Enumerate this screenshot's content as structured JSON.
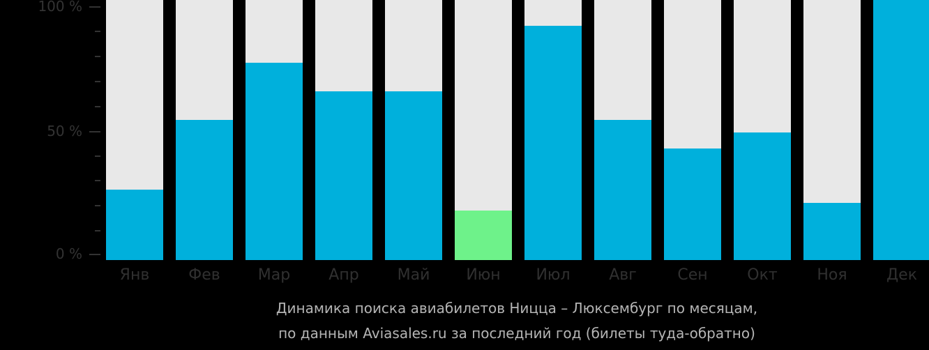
{
  "chart_data": {
    "type": "bar",
    "title": "Динамика поиска авиабилетов Ницца – Люксембург по месяцам,",
    "subtitle": "по данным Aviasales.ru за последний год (билеты туда-обратно)",
    "xlabel": "",
    "ylabel": "",
    "ylim": [
      0,
      100
    ],
    "yticks": [
      "100 %",
      "50 %",
      "0 %"
    ],
    "grid": false,
    "legend": null,
    "categories": [
      "Янв",
      "Фев",
      "Мар",
      "Апр",
      "Май",
      "Июн",
      "Июл",
      "Авг",
      "Сен",
      "Окт",
      "Ноя",
      "Дек"
    ],
    "series": [
      {
        "name": "Динамика поиска",
        "values": [
          27,
          54,
          76,
          65,
          65,
          19,
          90,
          54,
          43,
          49,
          22,
          100
        ]
      }
    ],
    "highlight_index": 5,
    "colors": {
      "bar": "#00b0dc",
      "highlight": "#6ef28a",
      "track": "#e8e8e8",
      "background": "#000000"
    }
  }
}
